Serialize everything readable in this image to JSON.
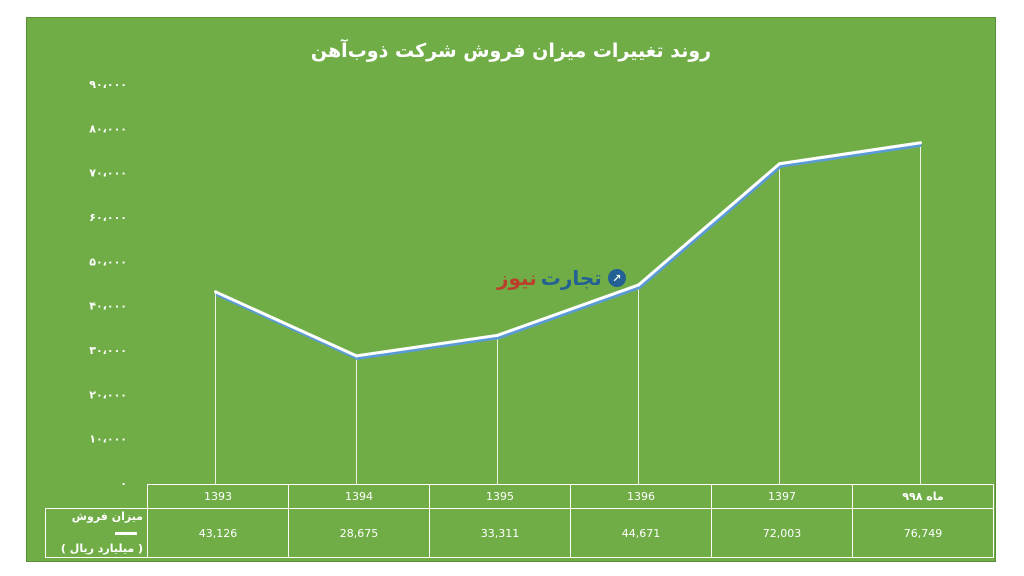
{
  "chart_data": {
    "type": "line",
    "title": "روند تغییرات میزان فروش شرکت ذوب‌آهن",
    "categories": [
      "1393",
      "1394",
      "1395",
      "1396",
      "1397",
      "۹ماه ۹۸"
    ],
    "series": [
      {
        "name": "میزان فروش",
        "values": [
          43126,
          28675,
          33311,
          44671,
          72003,
          76749
        ]
      }
    ],
    "series_unit_label": "( میلیارد ریال )",
    "value_labels": [
      "43,126",
      "28,675",
      "33,311",
      "44,671",
      "72,003",
      "76,749"
    ],
    "yticks": [
      "۰",
      "۱۰،۰۰۰",
      "۲۰،۰۰۰",
      "۳۰،۰۰۰",
      "۴۰،۰۰۰",
      "۵۰،۰۰۰",
      "۶۰،۰۰۰",
      "۷۰،۰۰۰",
      "۸۰،۰۰۰",
      "۹۰،۰۰۰"
    ],
    "ylim": [
      0,
      90000
    ],
    "grid": false,
    "legend": "data-table"
  },
  "watermark": {
    "word1": "تجارت",
    "word2": "نیوز"
  },
  "colors": {
    "background": "#70ad47",
    "line": "#ffffff",
    "line_shadow": "#5b9bd5"
  }
}
